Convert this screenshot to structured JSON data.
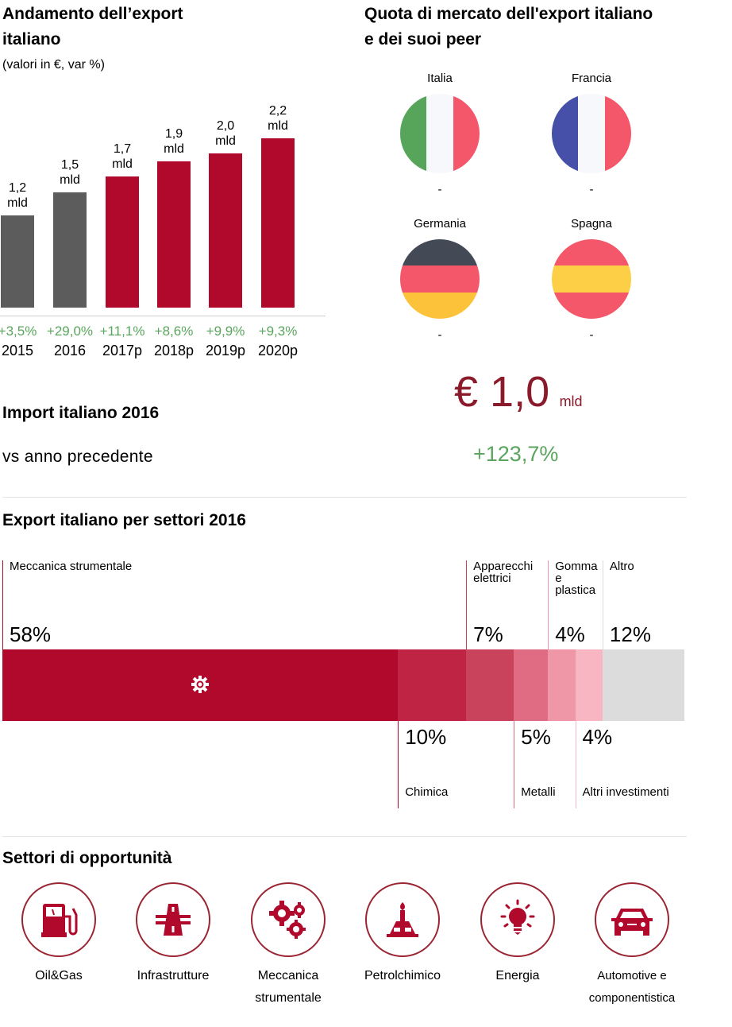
{
  "export_trend": {
    "title_line1": "Andamento dell’export",
    "title_line2": "italiano",
    "subtitle": "(valori in €, var %)"
  },
  "market_share": {
    "title_line1": "Quota di mercato dell'export italiano",
    "title_line2": "e dei suoi peer",
    "countries": [
      {
        "name": "Italia",
        "value": "-",
        "flag": "italy-flag-icon",
        "colors": [
          "#56a55b",
          "#f7f8fb",
          "#f4566a"
        ],
        "orientation": "vertical"
      },
      {
        "name": "Francia",
        "value": "-",
        "flag": "france-flag-icon",
        "colors": [
          "#4650a8",
          "#f7f8fb",
          "#f4566a"
        ],
        "orientation": "vertical"
      },
      {
        "name": "Germania",
        "value": "-",
        "flag": "germany-flag-icon",
        "colors": [
          "#434a56",
          "#f4566a",
          "#fcc33a"
        ],
        "orientation": "horizontal"
      },
      {
        "name": "Spagna",
        "value": "-",
        "flag": "spain-flag-icon",
        "colors": [
          "#f4566a",
          "#fdcf47",
          "#f4566a"
        ],
        "orientation": "horizontal"
      }
    ]
  },
  "import": {
    "title": "Import italiano 2016",
    "value": "€ 1,0",
    "unit": "mld",
    "comparison_label": "vs anno precedente",
    "change": "+123,7%"
  },
  "sectors": {
    "title": "Export italiano per settori 2016"
  },
  "opportunities": {
    "title": "Settori di opportunità",
    "items": [
      {
        "label": "Oil&Gas",
        "icon": "fuel-pump-icon"
      },
      {
        "label": "Infrastrutture",
        "icon": "highway-icon"
      },
      {
        "label": "Meccanica strumentale",
        "icon": "gears-icon"
      },
      {
        "label": "Petrolchimico",
        "icon": "refinery-flame-icon"
      },
      {
        "label": "Energia",
        "icon": "light-bulb-icon"
      },
      {
        "label": "Automotive e componentistica",
        "icon": "car-icon"
      }
    ]
  },
  "colors": {
    "accent_red": "#b1092c",
    "historic_gray": "#5c5c5c",
    "positive_green": "#5aa55e",
    "import_value_red": "#8b1a2b",
    "other_gray": "#dcdcdc"
  },
  "chart_data": [
    {
      "type": "bar",
      "title": "Andamento dell’export italiano",
      "subtitle": "(valori in €, var %)",
      "categories": [
        "2015",
        "2016",
        "2017p",
        "2018p",
        "2019p",
        "2020p"
      ],
      "values": [
        1.2,
        1.5,
        1.7,
        1.9,
        2.0,
        2.2
      ],
      "value_labels": [
        "1,2 mld",
        "1,5 mld",
        "1,7 mld",
        "1,9 mld",
        "2,0 mld",
        "2,2 mld"
      ],
      "variations": [
        "+3,5%",
        "+29,0%",
        "+11,1%",
        "+8,6%",
        "+9,9%",
        "+9,3%"
      ],
      "forecast": [
        false,
        false,
        true,
        true,
        true,
        true
      ],
      "unit": "mld €",
      "xlabel": "",
      "ylabel": "",
      "ylim": [
        0,
        2.2
      ],
      "grid": false
    },
    {
      "type": "bar",
      "subtype": "stacked-horizontal-100",
      "title": "Export italiano per settori 2016",
      "series": [
        {
          "name": "Meccanica strumentale",
          "value": 58,
          "label": "58%",
          "color": "#b1092c",
          "label_side": "top"
        },
        {
          "name": "Chimica",
          "value": 10,
          "label": "10%",
          "color": "#bf2445",
          "label_side": "bottom"
        },
        {
          "name": "Apparecchi elettrici",
          "value": 7,
          "label": "7%",
          "color": "#c9435d",
          "label_side": "top"
        },
        {
          "name": "Metalli",
          "value": 5,
          "label": "5%",
          "color": "#df6c82",
          "label_side": "bottom"
        },
        {
          "name": "Gomma e plastica",
          "value": 4,
          "label": "4%",
          "color": "#ef97a6",
          "label_side": "top"
        },
        {
          "name": "Altri investimenti",
          "value": 4,
          "label": "4%",
          "color": "#f8b6c3",
          "label_side": "bottom"
        },
        {
          "name": "Altro",
          "value": 12,
          "label": "12%",
          "color": "#dcdcdc",
          "label_side": "top"
        }
      ],
      "unit": "%"
    }
  ]
}
